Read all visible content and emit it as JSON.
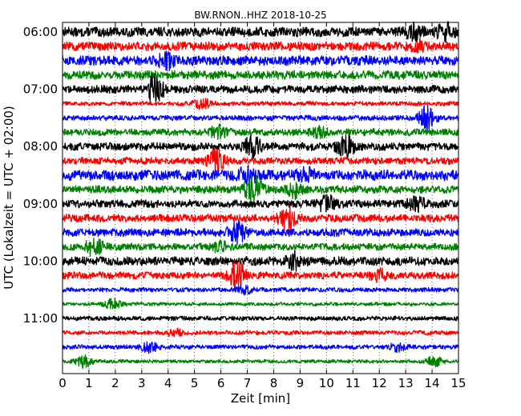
{
  "chart_data": {
    "type": "line",
    "title": "BW.RNON..HHZ 2018-10-25",
    "xlabel": "Zeit  [min]",
    "ylabel": "UTC (Lokalzeit = UTC + 02:00)",
    "xlim": [
      0,
      15
    ],
    "x_ticks": [
      "0",
      "1",
      "2",
      "3",
      "4",
      "5",
      "6",
      "7",
      "8",
      "9",
      "10",
      "11",
      "12",
      "13",
      "14",
      "15"
    ],
    "y_ticks": [
      "06:00",
      "07:00",
      "08:00",
      "09:00",
      "10:00",
      "11:00"
    ],
    "grid": true,
    "line_colors": [
      "#000000",
      "#ff0000",
      "#0000ff",
      "#008000"
    ],
    "series": [
      {
        "row_start": "06:00",
        "color": "#000000",
        "amplitude": 0.55,
        "events": [
          {
            "x": 13.3,
            "amp": 0.8
          },
          {
            "x": 14.5,
            "amp": 0.9
          }
        ]
      },
      {
        "row_start": "06:15",
        "color": "#ff0000",
        "amplitude": 0.5,
        "events": [
          {
            "x": 13.5,
            "amp": 0.6
          }
        ]
      },
      {
        "row_start": "06:30",
        "color": "#0000ff",
        "amplitude": 0.55,
        "events": [
          {
            "x": 3.9,
            "amp": 0.8
          }
        ]
      },
      {
        "row_start": "06:45",
        "color": "#008000",
        "amplitude": 0.5,
        "events": []
      },
      {
        "row_start": "07:00",
        "color": "#000000",
        "amplitude": 0.45,
        "events": [
          {
            "x": 3.5,
            "amp": 1.7
          }
        ]
      },
      {
        "row_start": "07:15",
        "color": "#ff0000",
        "amplitude": 0.25,
        "events": [
          {
            "x": 5.3,
            "amp": 0.6
          }
        ]
      },
      {
        "row_start": "07:30",
        "color": "#0000ff",
        "amplitude": 0.3,
        "events": [
          {
            "x": 13.8,
            "amp": 1.4
          }
        ]
      },
      {
        "row_start": "07:45",
        "color": "#008000",
        "amplitude": 0.4,
        "events": [
          {
            "x": 5.9,
            "amp": 0.7
          },
          {
            "x": 9.7,
            "amp": 0.6
          }
        ]
      },
      {
        "row_start": "08:00",
        "color": "#000000",
        "amplitude": 0.45,
        "events": [
          {
            "x": 7.2,
            "amp": 1.3
          },
          {
            "x": 10.7,
            "amp": 1.4
          }
        ]
      },
      {
        "row_start": "08:15",
        "color": "#ff0000",
        "amplitude": 0.4,
        "events": [
          {
            "x": 5.8,
            "amp": 1.6
          }
        ]
      },
      {
        "row_start": "08:30",
        "color": "#0000ff",
        "amplitude": 0.6,
        "events": [
          {
            "x": 7.0,
            "amp": 0.8
          },
          {
            "x": 9.2,
            "amp": 0.7
          }
        ]
      },
      {
        "row_start": "08:45",
        "color": "#008000",
        "amplitude": 0.45,
        "events": [
          {
            "x": 7.25,
            "amp": 1.8
          },
          {
            "x": 8.8,
            "amp": 0.8
          }
        ]
      },
      {
        "row_start": "09:00",
        "color": "#000000",
        "amplitude": 0.45,
        "events": [
          {
            "x": 10.0,
            "amp": 0.9
          },
          {
            "x": 13.4,
            "amp": 0.7
          }
        ]
      },
      {
        "row_start": "09:15",
        "color": "#ff0000",
        "amplitude": 0.45,
        "events": [
          {
            "x": 8.5,
            "amp": 1.5
          }
        ]
      },
      {
        "row_start": "09:30",
        "color": "#0000ff",
        "amplitude": 0.45,
        "events": [
          {
            "x": 6.6,
            "amp": 1.2
          }
        ]
      },
      {
        "row_start": "09:45",
        "color": "#008000",
        "amplitude": 0.4,
        "events": [
          {
            "x": 1.2,
            "amp": 1.0
          },
          {
            "x": 6.0,
            "amp": 0.6
          }
        ]
      },
      {
        "row_start": "10:00",
        "color": "#000000",
        "amplitude": 0.5,
        "events": [
          {
            "x": 8.8,
            "amp": 0.9
          }
        ]
      },
      {
        "row_start": "10:15",
        "color": "#ff0000",
        "amplitude": 0.4,
        "events": [
          {
            "x": 6.6,
            "amp": 1.7
          },
          {
            "x": 12.0,
            "amp": 0.6
          }
        ]
      },
      {
        "row_start": "10:30",
        "color": "#0000ff",
        "amplitude": 0.25,
        "events": [
          {
            "x": 6.9,
            "amp": 0.5
          }
        ]
      },
      {
        "row_start": "10:45",
        "color": "#008000",
        "amplitude": 0.2,
        "events": [
          {
            "x": 1.9,
            "amp": 0.6
          }
        ]
      },
      {
        "row_start": "11:00",
        "color": "#000000",
        "amplitude": 0.25,
        "events": []
      },
      {
        "row_start": "11:15",
        "color": "#ff0000",
        "amplitude": 0.25,
        "events": [
          {
            "x": 4.3,
            "amp": 0.4
          }
        ]
      },
      {
        "row_start": "11:30",
        "color": "#0000ff",
        "amplitude": 0.25,
        "events": [
          {
            "x": 3.3,
            "amp": 0.6
          },
          {
            "x": 12.7,
            "amp": 0.4
          }
        ]
      },
      {
        "row_start": "11:45",
        "color": "#008000",
        "amplitude": 0.2,
        "events": [
          {
            "x": 0.8,
            "amp": 0.7
          },
          {
            "x": 14.1,
            "amp": 0.6
          }
        ]
      }
    ]
  }
}
